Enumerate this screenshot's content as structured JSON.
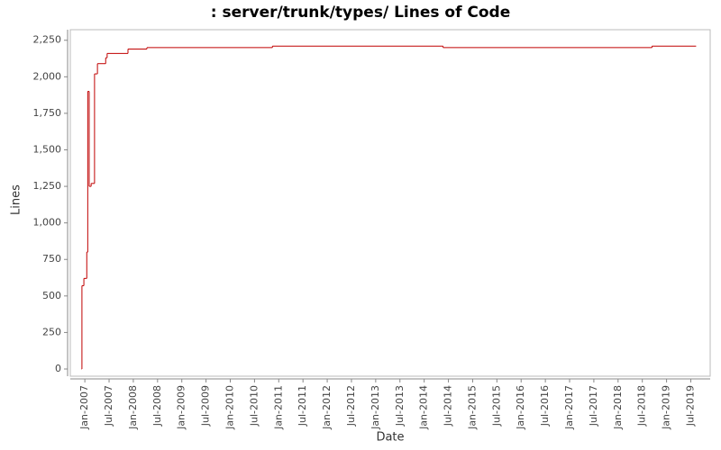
{
  "chart_data": {
    "type": "step-line",
    "title": ": server/trunk/types/ Lines of Code",
    "x_label": "Date",
    "y_label": "Lines",
    "x": [
      2006.93,
      2006.94,
      2006.98,
      2007.04,
      2007.06,
      2007.09,
      2007.13,
      2007.2,
      2007.26,
      2007.43,
      2007.46,
      2007.89,
      2008.28,
      2010.87,
      2014.39,
      2018.7,
      2019.61
    ],
    "series": [
      {
        "name": "Lines",
        "color": "#c00000",
        "values": [
          0,
          570,
          620,
          800,
          1900,
          1250,
          1270,
          2020,
          2090,
          2130,
          2160,
          2190,
          2200,
          2210,
          2200,
          2210,
          2210
        ]
      }
    ],
    "xlim": [
      2006.7,
      2019.9
    ],
    "xticks": [
      {
        "value": 2007.0,
        "label": "Jan-2007"
      },
      {
        "value": 2007.5,
        "label": "Jul-2007"
      },
      {
        "value": 2008.0,
        "label": "Jan-2008"
      },
      {
        "value": 2008.5,
        "label": "Jul-2008"
      },
      {
        "value": 2009.0,
        "label": "Jan-2009"
      },
      {
        "value": 2009.5,
        "label": "Jul-2009"
      },
      {
        "value": 2010.0,
        "label": "Jan-2010"
      },
      {
        "value": 2010.5,
        "label": "Jul-2010"
      },
      {
        "value": 2011.0,
        "label": "Jan-2011"
      },
      {
        "value": 2011.5,
        "label": "Jul-2011"
      },
      {
        "value": 2012.0,
        "label": "Jan-2012"
      },
      {
        "value": 2012.5,
        "label": "Jul-2012"
      },
      {
        "value": 2013.0,
        "label": "Jan-2013"
      },
      {
        "value": 2013.5,
        "label": "Jul-2013"
      },
      {
        "value": 2014.0,
        "label": "Jan-2014"
      },
      {
        "value": 2014.5,
        "label": "Jul-2014"
      },
      {
        "value": 2015.0,
        "label": "Jan-2015"
      },
      {
        "value": 2015.5,
        "label": "Jul-2015"
      },
      {
        "value": 2016.0,
        "label": "Jan-2016"
      },
      {
        "value": 2016.5,
        "label": "Jul-2016"
      },
      {
        "value": 2017.0,
        "label": "Jan-2017"
      },
      {
        "value": 2017.5,
        "label": "Jul-2017"
      },
      {
        "value": 2018.0,
        "label": "Jan-2018"
      },
      {
        "value": 2018.5,
        "label": "Jul-2018"
      },
      {
        "value": 2019.0,
        "label": "Jan-2019"
      },
      {
        "value": 2019.5,
        "label": "Jul-2019"
      }
    ],
    "ylim": [
      0,
      2310
    ],
    "yticks": [
      0,
      250,
      500,
      750,
      {
        "value": 1000,
        "label": "1,000"
      },
      {
        "value": 1250,
        "label": "1,250"
      },
      {
        "value": 1500,
        "label": "1,500"
      },
      {
        "value": 1750,
        "label": "1,750"
      },
      {
        "value": 2000,
        "label": "2,000"
      },
      {
        "value": 2250,
        "label": "2,250"
      }
    ],
    "grid": false
  }
}
